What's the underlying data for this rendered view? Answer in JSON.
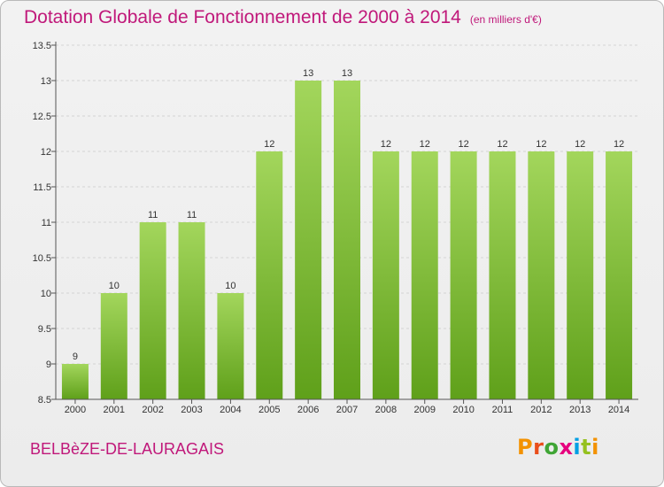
{
  "header": {
    "title": "Dotation Globale de Fonctionnement de 2000 à 2014",
    "subtitle": "(en milliers d'€)"
  },
  "footer": {
    "commune": "BELBèZE-DE-LAURAGAIS",
    "logo_letters": [
      "P",
      "r",
      "o",
      "x",
      "i",
      "t",
      "i"
    ],
    "logo_colors": [
      "#f39200",
      "#e94e1b",
      "#3fa535",
      "#e6007e",
      "#009fe3",
      "#95c11f",
      "#f39200"
    ]
  },
  "colors": {
    "bar_top": "#a3d65c",
    "bar_bottom": "#5fa01a",
    "accent": "#c0187a"
  },
  "chart_data": {
    "type": "bar",
    "categories": [
      "2000",
      "2001",
      "2002",
      "2003",
      "2004",
      "2005",
      "2006",
      "2007",
      "2008",
      "2009",
      "2010",
      "2011",
      "2012",
      "2013",
      "2014"
    ],
    "values": [
      9,
      10,
      11,
      11,
      10,
      12,
      13,
      13,
      12,
      12,
      12,
      12,
      12,
      12,
      12
    ],
    "data_labels": [
      "9",
      "10",
      "11",
      "11",
      "10",
      "12",
      "13",
      "13",
      "12",
      "12",
      "12",
      "12",
      "12",
      "12",
      "12"
    ],
    "yticks": [
      "8.5",
      "9",
      "9.5",
      "10",
      "10.5",
      "11",
      "11.5",
      "12",
      "12.5",
      "13",
      "13.5"
    ],
    "ylim": [
      8.5,
      13.5
    ],
    "grid": true,
    "legend": "none"
  }
}
